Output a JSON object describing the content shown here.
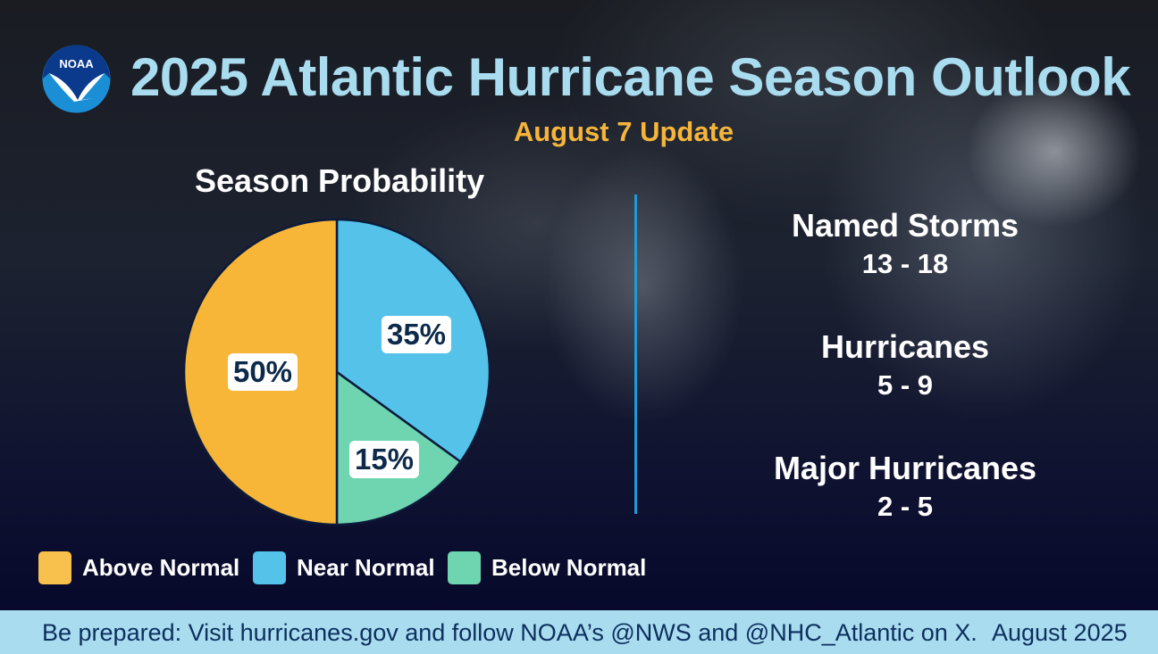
{
  "header": {
    "logo_text": "NOAA",
    "title": "2025 Atlantic Hurricane Season Outlook",
    "subtitle": "August 7 Update"
  },
  "chart_data": {
    "type": "pie",
    "title": "Season Probability",
    "categories": [
      "Above Normal",
      "Near Normal",
      "Below Normal"
    ],
    "values": [
      50,
      35,
      15
    ],
    "labels": [
      "50%",
      "35%",
      "15%"
    ],
    "colors": [
      "#f8b638",
      "#55c2ea",
      "#6fd4b0"
    ]
  },
  "stats": [
    {
      "name": "Named Storms",
      "value": "13 - 18"
    },
    {
      "name": "Hurricanes",
      "value": "5 - 9"
    },
    {
      "name": "Major Hurricanes",
      "value": "2 - 5"
    }
  ],
  "footer": {
    "message": "Be prepared: Visit hurricanes.gov and follow NOAA’s @NWS and @NHC_Atlantic on X.",
    "date": "August 2025"
  },
  "colors": {
    "title": "#a9dcef",
    "subtitle": "#f6b53a",
    "divider": "#1e9bd7",
    "footer_bg": "#a9dcef"
  }
}
